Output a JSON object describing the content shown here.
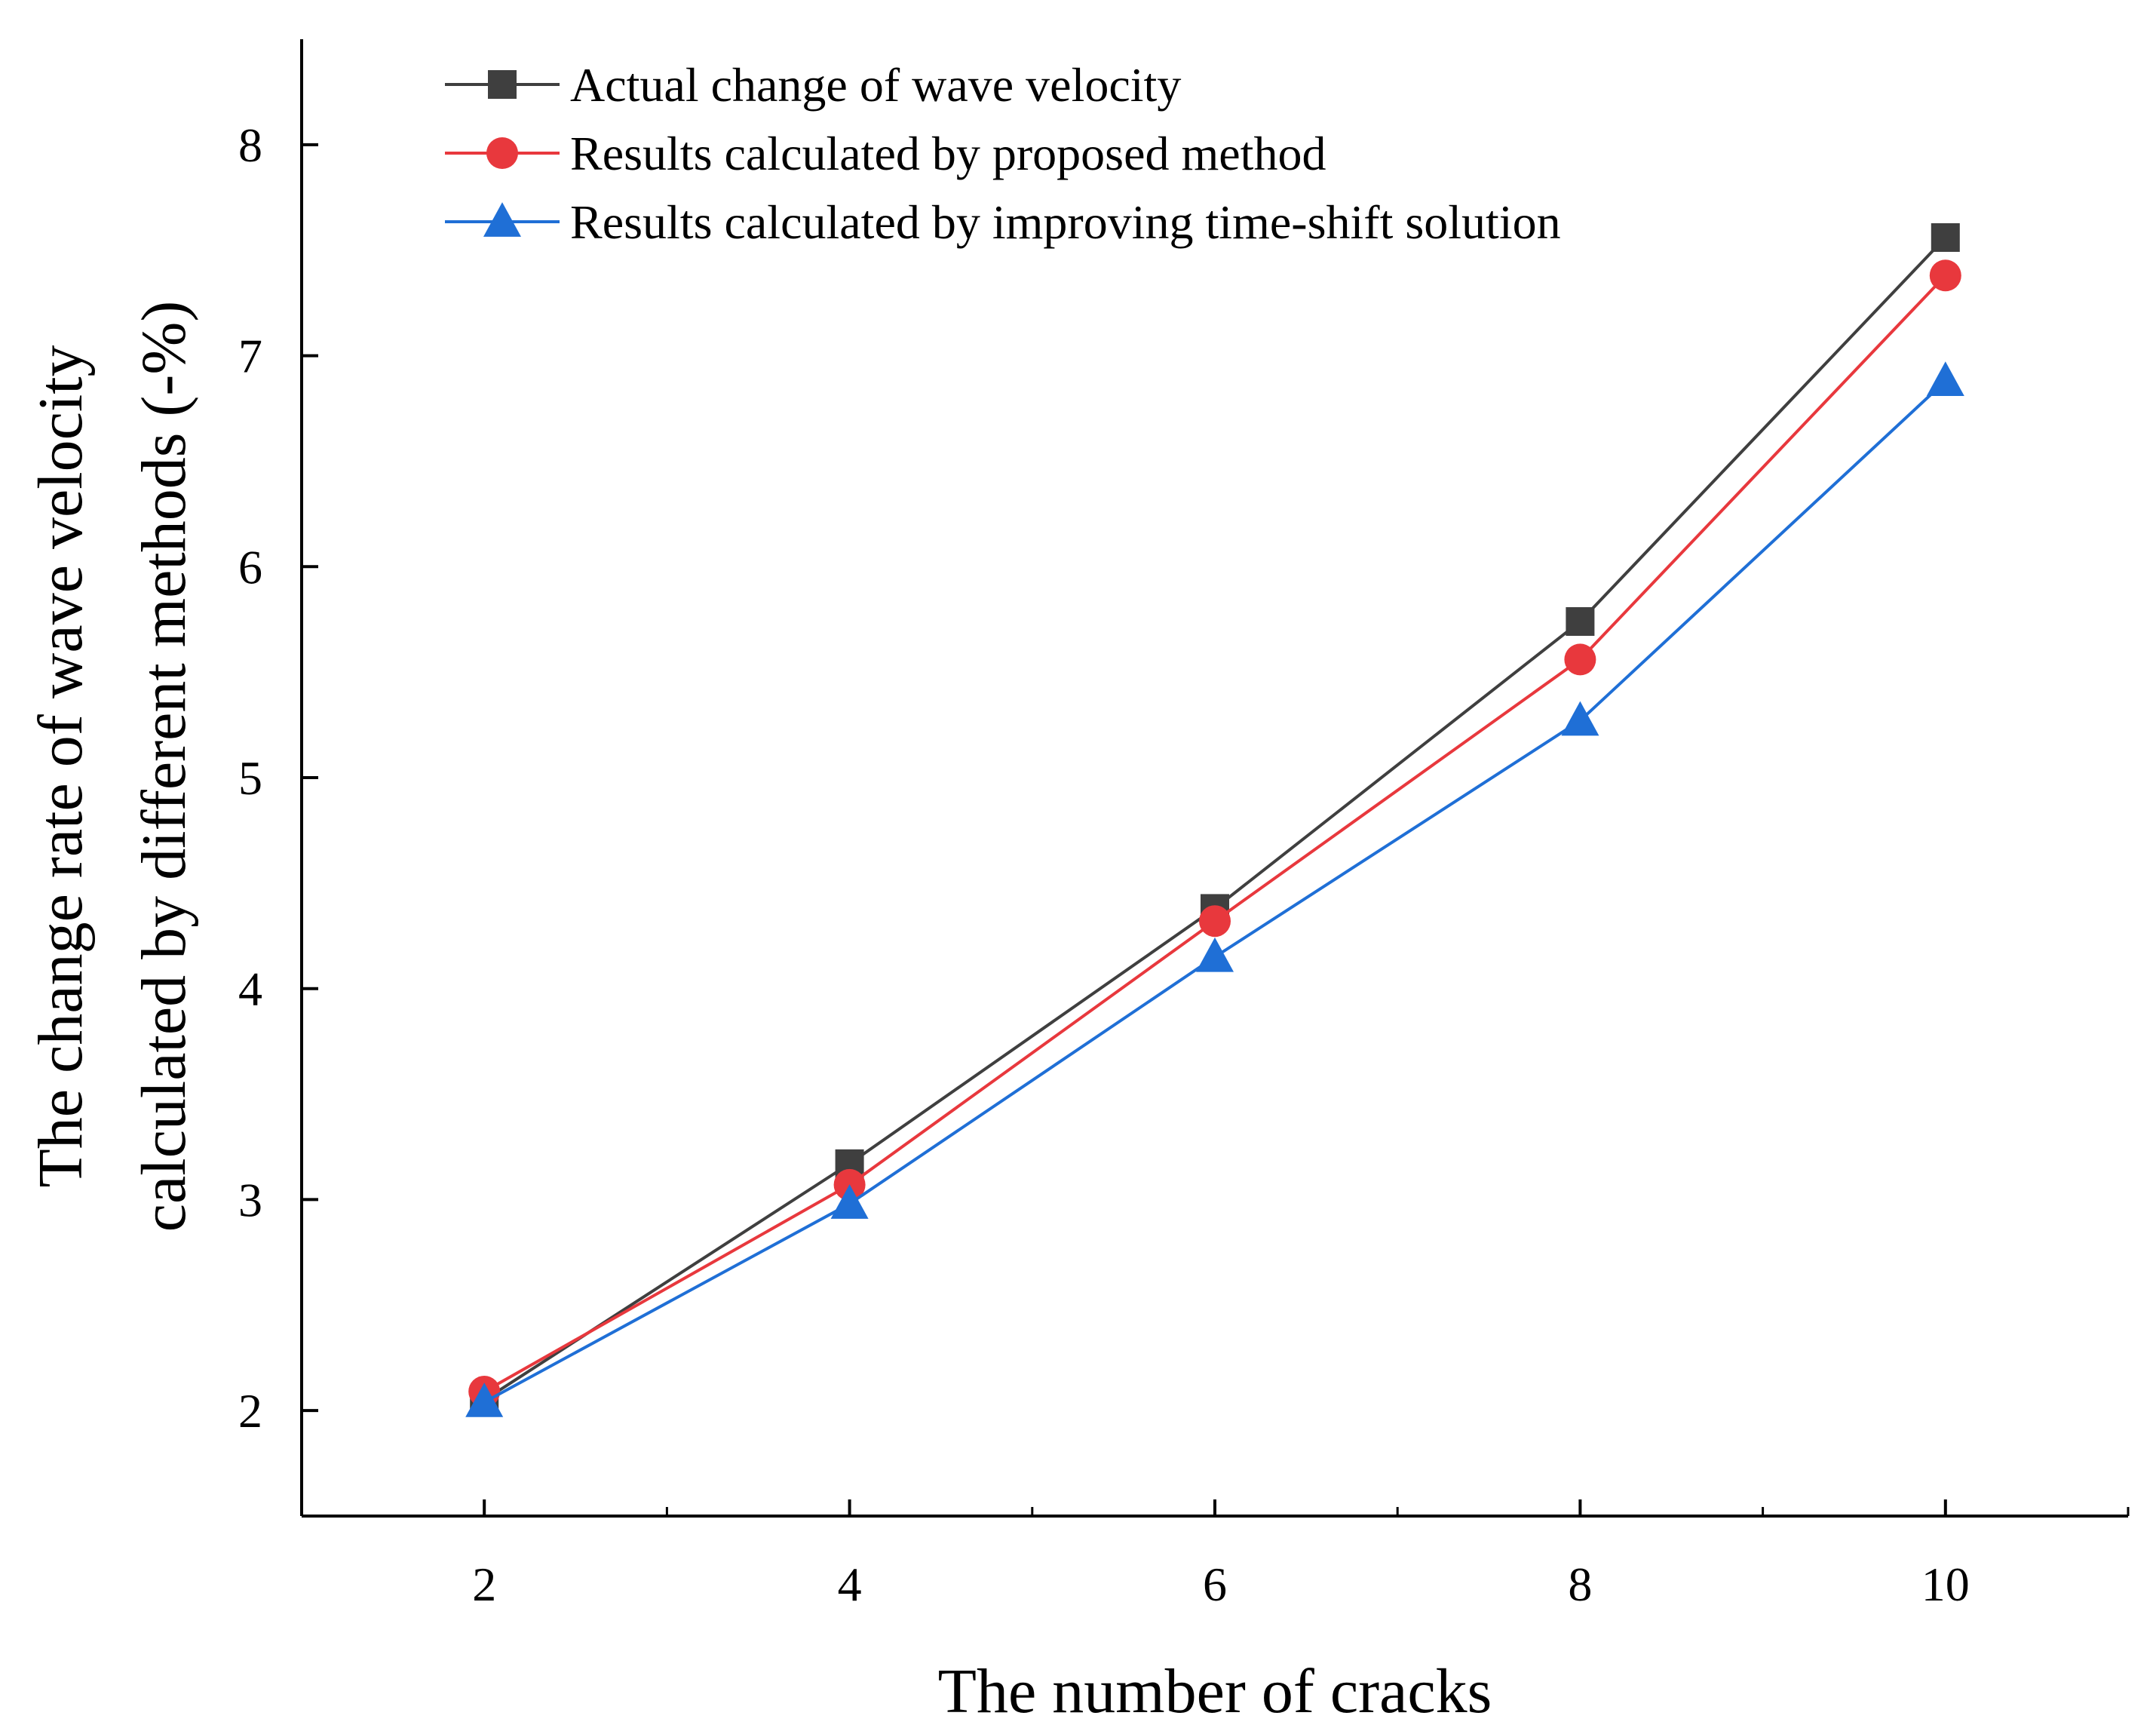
{
  "chart_data": {
    "type": "line",
    "title": "",
    "xlabel": "The number of cracks",
    "ylabel_lines": [
      "The change rate of wave velocity",
      "calculated by different methods (-%)"
    ],
    "x": [
      2,
      4,
      6,
      8,
      10
    ],
    "xlim": [
      1,
      11
    ],
    "ylim": [
      1.5,
      8.5
    ],
    "x_ticks": [
      2,
      4,
      6,
      8,
      10
    ],
    "x_tick_labels": [
      "2",
      "4",
      "6",
      "8",
      "10"
    ],
    "y_ticks": [
      2,
      3,
      4,
      5,
      6,
      7,
      8
    ],
    "y_tick_labels": [
      "2",
      "3",
      "4",
      "5",
      "6",
      "7",
      "8"
    ],
    "grid": false,
    "legend_position": "top-left",
    "series": [
      {
        "name": "Actual change of wave velocity",
        "values": [
          2.05,
          3.17,
          4.38,
          5.74,
          7.56
        ],
        "color": "#3f3f3f",
        "marker": "square"
      },
      {
        "name": "Results calculated by proposed method",
        "values": [
          2.09,
          3.07,
          4.32,
          5.56,
          7.38
        ],
        "color": "#e8383d",
        "marker": "circle"
      },
      {
        "name": "Results calculated by improving time-shift solution",
        "values": [
          2.04,
          2.98,
          4.15,
          5.27,
          6.88
        ],
        "color": "#1f6fd6",
        "marker": "triangle"
      }
    ]
  }
}
